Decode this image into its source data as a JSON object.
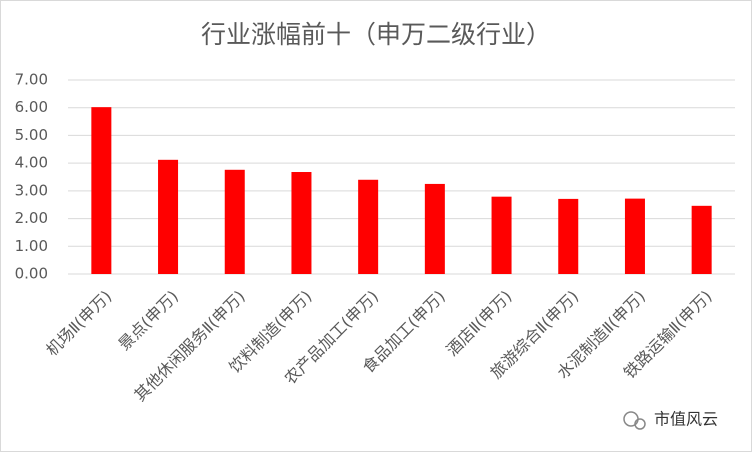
{
  "chart_data": {
    "type": "bar",
    "title": "行业涨幅前十（申万二级行业）",
    "categories": [
      "机场Ⅱ(申万)",
      "景点(申万)",
      "其他休闲服务Ⅱ(申万)",
      "饮料制造(申万)",
      "农产品加工(申万)",
      "食品加工(申万)",
      "酒店Ⅱ(申万)",
      "旅游综合Ⅱ(申万)",
      "水泥制造Ⅱ(申万)",
      "铁路运输Ⅱ(申万)"
    ],
    "values": [
      6.02,
      4.12,
      3.76,
      3.68,
      3.4,
      3.25,
      2.79,
      2.71,
      2.72,
      2.46
    ],
    "color": "#ff0000",
    "ylim": [
      0,
      7
    ],
    "yticks": [
      {
        "value": 0,
        "label": "0.00"
      },
      {
        "value": 1,
        "label": "1.00"
      },
      {
        "value": 2,
        "label": "2.00"
      },
      {
        "value": 3,
        "label": "3.00"
      },
      {
        "value": 4,
        "label": "4.00"
      },
      {
        "value": 5,
        "label": "5.00"
      },
      {
        "value": 6,
        "label": "6.00"
      },
      {
        "value": 7,
        "label": "7.00"
      }
    ],
    "grid": true,
    "watermark": "市值风云"
  }
}
